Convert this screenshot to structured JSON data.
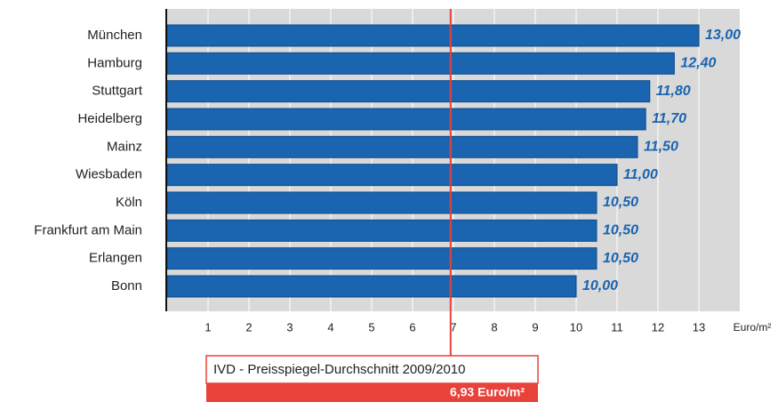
{
  "chart_data": {
    "type": "bar",
    "orientation": "horizontal",
    "categories": [
      "München",
      "Hamburg",
      "Stuttgart",
      "Heidelberg",
      "Mainz",
      "Wiesbaden",
      "Köln",
      "Frankfurt am Main",
      "Erlangen",
      "Bonn"
    ],
    "values": [
      13,
      12.4,
      11.8,
      11.7,
      11.5,
      11,
      10.5,
      10.5,
      10.5,
      10
    ],
    "value_labels": [
      "13,00",
      "12,40",
      "11,80",
      "11,70",
      "11,50",
      "11,00",
      "10,50",
      "10,50",
      "10,50",
      "10,00"
    ],
    "color": "#1a64b0",
    "xlim": [
      0,
      14
    ],
    "xticks": [
      1,
      2,
      3,
      4,
      5,
      6,
      7,
      8,
      9,
      10,
      11,
      12,
      13
    ],
    "x_label": "Euro/m²",
    "grid": true,
    "reference_line": {
      "value": 6.93,
      "label": "6,93 Euro/m²",
      "title": "IVD - Preisspiegel-Durchschnitt 2009/2010",
      "color": "#e8423a"
    }
  }
}
